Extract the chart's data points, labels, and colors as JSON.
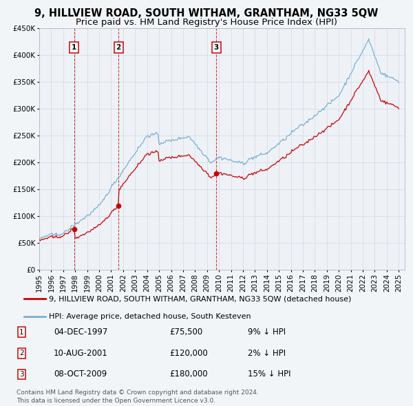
{
  "title": "9, HILLVIEW ROAD, SOUTH WITHAM, GRANTHAM, NG33 5QW",
  "subtitle": "Price paid vs. HM Land Registry's House Price Index (HPI)",
  "ylim": [
    0,
    450000
  ],
  "yticks": [
    0,
    50000,
    100000,
    150000,
    200000,
    250000,
    300000,
    350000,
    400000,
    450000
  ],
  "ytick_labels": [
    "£0",
    "£50K",
    "£100K",
    "£150K",
    "£200K",
    "£250K",
    "£300K",
    "£350K",
    "£400K",
    "£450K"
  ],
  "xlim_start": 1995.0,
  "xlim_end": 2025.5,
  "background_color": "#f2f5f8",
  "plot_bg_color": "#eef2f7",
  "grid_color": "#d0d8e4",
  "sale_color": "#cc0000",
  "hpi_color": "#7bafd4",
  "vline_color": "#cc0000",
  "sale_label": "9, HILLVIEW ROAD, SOUTH WITHAM, GRANTHAM, NG33 5QW (detached house)",
  "hpi_label": "HPI: Average price, detached house, South Kesteven",
  "transactions": [
    {
      "num": 1,
      "date_label": "04-DEC-1997",
      "price": 75500,
      "pct": "9%",
      "x": 1997.92
    },
    {
      "num": 2,
      "date_label": "10-AUG-2001",
      "price": 120000,
      "pct": "2%",
      "x": 2001.61
    },
    {
      "num": 3,
      "date_label": "08-OCT-2009",
      "price": 180000,
      "pct": "15%",
      "x": 2009.78
    }
  ],
  "footer": "Contains HM Land Registry data © Crown copyright and database right 2024.\nThis data is licensed under the Open Government Licence v3.0.",
  "title_fontsize": 10.5,
  "subtitle_fontsize": 9.5,
  "tick_fontsize": 7.5,
  "legend_fontsize": 8.0,
  "table_fontsize": 8.5
}
